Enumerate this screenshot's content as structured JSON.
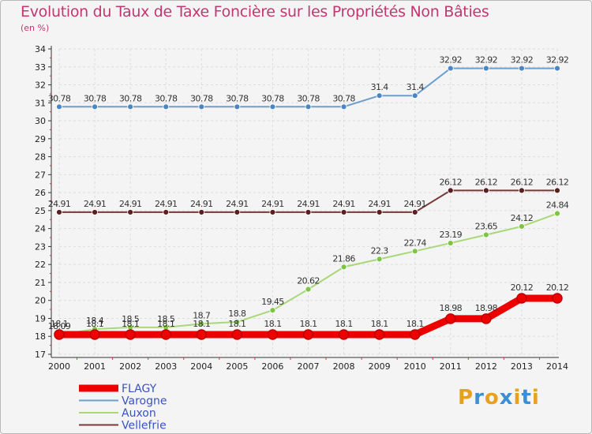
{
  "chart_data": {
    "type": "line",
    "title": "Evolution du Taux de Taxe Foncière sur les Propriétés Non Bâties",
    "subtitle": "(en %)",
    "xlabel": "",
    "ylabel": "(en %)",
    "categories": [
      "2000",
      "2001",
      "2002",
      "2003",
      "2004",
      "2005",
      "2006",
      "2007",
      "2008",
      "2009",
      "2010",
      "2011",
      "2012",
      "2013",
      "2014"
    ],
    "ylim": [
      17,
      34
    ],
    "yticks": [
      17,
      18,
      19,
      20,
      21,
      22,
      23,
      24,
      25,
      26,
      27,
      28,
      29,
      30,
      31,
      32,
      33,
      34
    ],
    "grid": true,
    "legend_position": "bottom-left",
    "series": [
      {
        "name": "Varogne",
        "color": "#6b9fcf",
        "marker": "#4a86c2",
        "values": [
          30.78,
          30.78,
          30.78,
          30.78,
          30.78,
          30.78,
          30.78,
          30.78,
          30.78,
          31.4,
          31.4,
          32.92,
          32.92,
          32.92,
          32.92
        ],
        "labels": [
          "30.78",
          "30.78",
          "30.78",
          "30.78",
          "30.78",
          "30.78",
          "30.78",
          "30.78",
          "30.78",
          "31.4",
          "31.4",
          "32.92",
          "32.92",
          "32.92",
          "32.92"
        ]
      },
      {
        "name": "Vellefrie",
        "color": "#7a3838",
        "marker": "#5a2020",
        "values": [
          24.91,
          24.91,
          24.91,
          24.91,
          24.91,
          24.91,
          24.91,
          24.91,
          24.91,
          24.91,
          24.91,
          26.12,
          26.12,
          26.12,
          26.12
        ],
        "labels": [
          "24.91",
          "24.91",
          "24.91",
          "24.91",
          "24.91",
          "24.91",
          "24.91",
          "24.91",
          "24.91",
          "24.91",
          "24.91",
          "26.12",
          "26.12",
          "26.12",
          "26.12"
        ]
      },
      {
        "name": "Auxon",
        "color": "#a8d878",
        "marker": "#7cc442",
        "values": [
          18.09,
          18.4,
          18.5,
          18.5,
          18.7,
          18.8,
          19.45,
          20.62,
          21.86,
          22.3,
          22.74,
          23.19,
          23.65,
          24.12,
          24.84
        ],
        "labels": [
          "18.09",
          "18.4",
          "18.5",
          "18.5",
          "18.7",
          "18.8",
          "19.45",
          "20.62",
          "21.86",
          "22.3",
          "22.74",
          "23.19",
          "23.65",
          "24.12",
          "24.84"
        ]
      },
      {
        "name": "FLAGY",
        "color": "#ee0000",
        "marker": "#ee0000",
        "values": [
          18.1,
          18.1,
          18.1,
          18.1,
          18.1,
          18.1,
          18.1,
          18.1,
          18.1,
          18.1,
          18.1,
          18.98,
          18.98,
          20.12,
          20.12
        ],
        "labels": [
          "18.1",
          "18.1",
          "18.1",
          "18.1",
          "18.1",
          "18.1",
          "18.1",
          "18.1",
          "18.1",
          "18.1",
          "18.1",
          "18.98",
          "18.98",
          "20.12",
          "20.12"
        ]
      }
    ],
    "legend": [
      "FLAGY",
      "Varogne",
      "Auxon",
      "Vellefrie"
    ]
  },
  "logo": {
    "letters": [
      "P",
      "r",
      "o",
      "x",
      "i",
      "t",
      "i"
    ],
    "colors": [
      "#e8a020",
      "#3b8fd4",
      "#e8a020",
      "#3b8fd4",
      "#e8a020",
      "#3b8fd4",
      "#e8a020"
    ]
  }
}
